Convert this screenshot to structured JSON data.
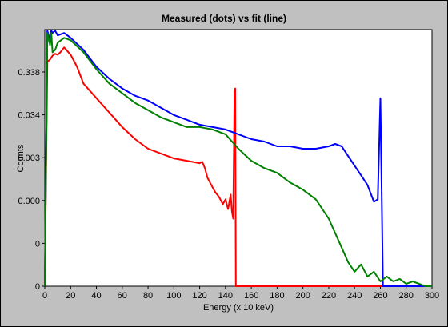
{
  "chart_data": {
    "type": "line",
    "title": "Measured (dots) vs fit (line)",
    "xlabel": "Energy (x 10 keV)",
    "ylabel": "Counts",
    "xlim": [
      0,
      300
    ],
    "x_ticks": [
      "0",
      "20",
      "40",
      "60",
      "80",
      "100",
      "120",
      "140",
      "160",
      "180",
      "200",
      "220",
      "240",
      "260",
      "280",
      "300"
    ],
    "y_ticks": [
      "0",
      "0",
      "0.000",
      "0.003",
      "0.034",
      "0.338"
    ],
    "y_scale": "log",
    "grid": false,
    "legend": "none",
    "colors": {
      "red": "#ff0000",
      "blue": "#0000ff",
      "green": "#008000"
    },
    "series": [
      {
        "color": "red",
        "x": [
          0,
          2,
          4,
          6,
          8,
          10,
          12,
          15,
          20,
          25,
          30,
          40,
          50,
          60,
          70,
          80,
          90,
          100,
          110,
          120,
          122,
          124,
          126,
          128,
          130,
          132,
          135,
          138,
          140,
          142,
          144,
          145,
          146,
          147,
          147.5,
          148,
          148.5,
          149,
          150,
          170,
          200,
          260,
          300
        ],
        "y_level": [
          0,
          4.65,
          4.7,
          4.78,
          4.82,
          4.8,
          4.85,
          4.95,
          4.8,
          4.55,
          4.2,
          3.9,
          3.6,
          3.3,
          3.05,
          2.85,
          2.75,
          2.65,
          2.6,
          2.55,
          2.58,
          2.45,
          2.25,
          2.15,
          2.05,
          1.95,
          1.85,
          1.7,
          1.8,
          1.6,
          1.9,
          1.55,
          1.4,
          4.05,
          4.1,
          0,
          0,
          0,
          0,
          0,
          0,
          0,
          0
        ]
      },
      {
        "color": "blue",
        "x": [
          0,
          2,
          4,
          5,
          6,
          8,
          10,
          15,
          20,
          30,
          40,
          50,
          60,
          70,
          80,
          90,
          100,
          110,
          120,
          130,
          140,
          150,
          160,
          170,
          180,
          190,
          200,
          210,
          220,
          225,
          230,
          235,
          240,
          245,
          250,
          255,
          258,
          260,
          262,
          264,
          270,
          300
        ],
        "y_level": [
          0,
          5.3,
          5.1,
          5.3,
          5.25,
          5.3,
          5.2,
          5.25,
          5.15,
          4.9,
          4.55,
          4.3,
          4.1,
          3.95,
          3.85,
          3.7,
          3.55,
          3.45,
          3.35,
          3.3,
          3.25,
          3.15,
          3.05,
          3.0,
          2.9,
          2.9,
          2.85,
          2.85,
          2.9,
          2.95,
          2.9,
          2.7,
          2.5,
          2.3,
          2.1,
          1.75,
          1.8,
          3.9,
          0,
          0,
          0,
          0
        ]
      },
      {
        "color": "green",
        "x": [
          0,
          2,
          4,
          5,
          6,
          8,
          10,
          15,
          20,
          30,
          40,
          50,
          60,
          70,
          80,
          90,
          100,
          110,
          120,
          130,
          140,
          150,
          160,
          170,
          180,
          190,
          200,
          210,
          215,
          220,
          225,
          230,
          235,
          240,
          245,
          250,
          255,
          260,
          265,
          270,
          275,
          280,
          285,
          290,
          295,
          300
        ],
        "y_level": [
          0,
          5.25,
          5.0,
          5.25,
          4.85,
          4.9,
          5.05,
          5.15,
          5.1,
          4.85,
          4.5,
          4.2,
          4.0,
          3.8,
          3.65,
          3.5,
          3.4,
          3.3,
          3.3,
          3.25,
          3.15,
          2.85,
          2.6,
          2.45,
          2.35,
          2.15,
          2.0,
          1.8,
          1.6,
          1.4,
          1.1,
          0.8,
          0.5,
          0.3,
          0.45,
          0.2,
          0.3,
          0.1,
          0.2,
          0.1,
          0.15,
          0.05,
          0.1,
          0.05,
          0,
          0
        ]
      }
    ]
  }
}
